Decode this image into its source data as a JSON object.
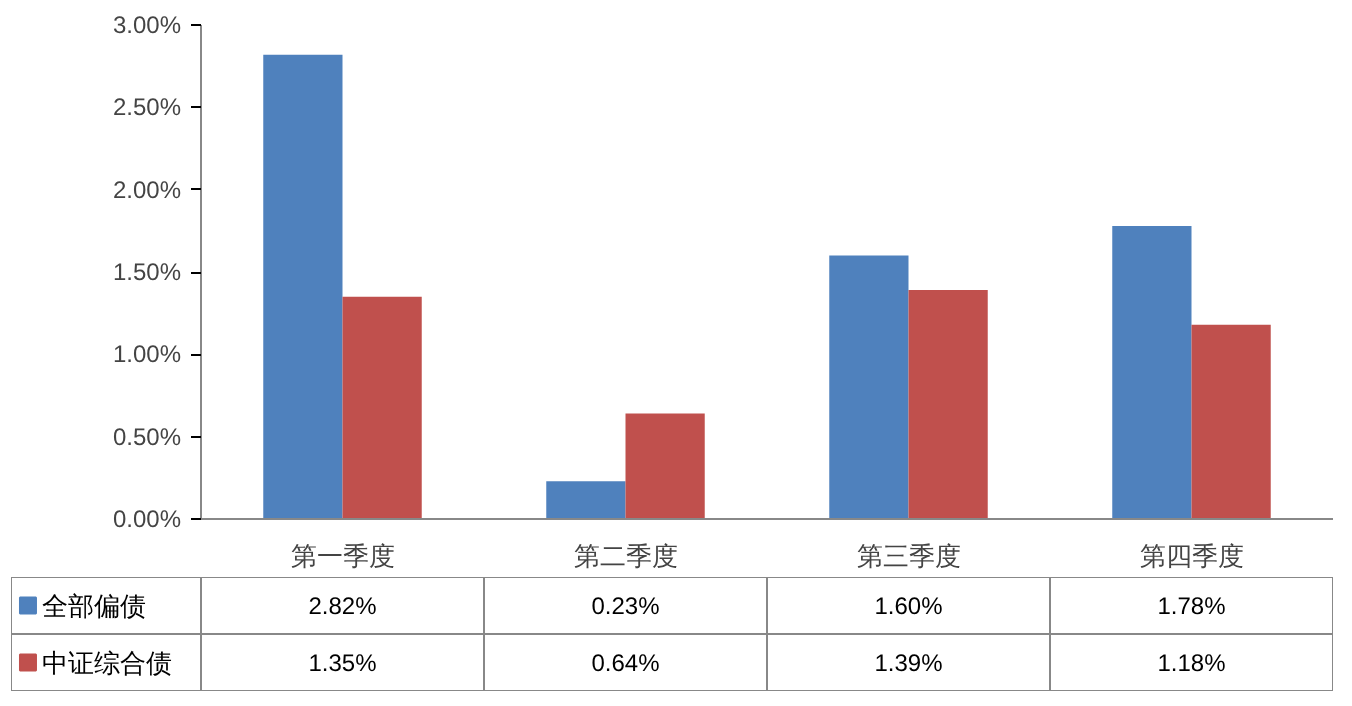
{
  "chart_data": {
    "type": "bar",
    "categories": [
      "第一季度",
      "第二季度",
      "第三季度",
      "第四季度"
    ],
    "series": [
      {
        "name": "全部偏债",
        "color": "#4f81bd",
        "values": [
          2.82,
          0.23,
          1.6,
          1.78
        ],
        "value_labels": [
          "2.82%",
          "0.23%",
          "1.60%",
          "1.78%"
        ]
      },
      {
        "name": "中证综合债",
        "color": "#c0504d",
        "values": [
          1.35,
          0.64,
          1.39,
          1.18
        ],
        "value_labels": [
          "1.35%",
          "0.64%",
          "1.39%",
          "1.18%"
        ]
      }
    ],
    "ylim": [
      0,
      3
    ],
    "yticks": [
      {
        "value": 0,
        "label": "0.00%"
      },
      {
        "value": 0.5,
        "label": "0.50%"
      },
      {
        "value": 1,
        "label": "1.00%"
      },
      {
        "value": 1.5,
        "label": "1.50%"
      },
      {
        "value": 2,
        "label": "2.00%"
      },
      {
        "value": 2.5,
        "label": "2.50%"
      },
      {
        "value": 3,
        "label": "3.00%"
      }
    ],
    "legend": "bottom"
  }
}
